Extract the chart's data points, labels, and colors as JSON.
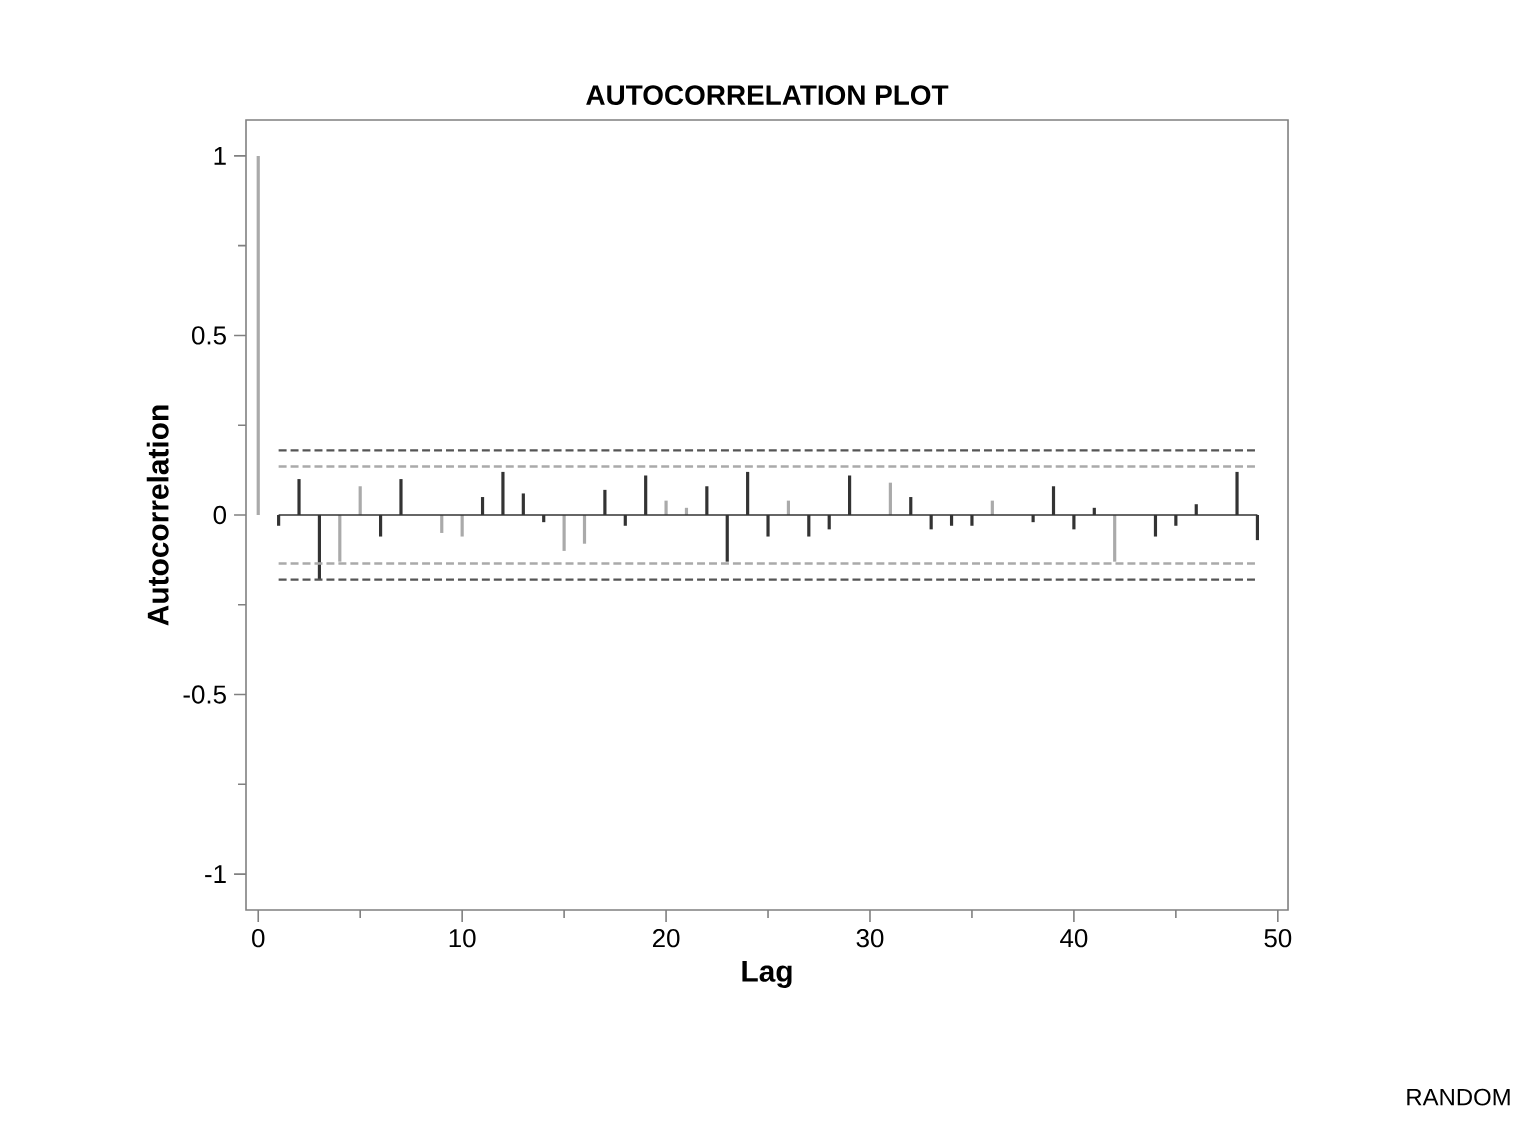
{
  "chart_data": {
    "type": "bar",
    "title": "AUTOCORRELATION PLOT",
    "xlabel": "Lag",
    "ylabel": "Autocorrelation",
    "x": [
      0,
      1,
      2,
      3,
      4,
      5,
      6,
      7,
      8,
      9,
      10,
      11,
      12,
      13,
      14,
      15,
      16,
      17,
      18,
      19,
      20,
      21,
      22,
      23,
      24,
      25,
      26,
      27,
      28,
      29,
      30,
      31,
      32,
      33,
      34,
      35,
      36,
      37,
      38,
      39,
      40,
      41,
      42,
      43,
      44,
      45,
      46,
      47,
      48,
      49
    ],
    "values": [
      1,
      -0.03,
      0.1,
      -0.18,
      -0.13,
      0.08,
      -0.06,
      0.1,
      0,
      -0.05,
      -0.06,
      0.05,
      0.12,
      0.06,
      -0.02,
      -0.1,
      -0.08,
      0.07,
      -0.03,
      0.11,
      0.04,
      0.02,
      0.08,
      -0.13,
      0.12,
      -0.06,
      0.04,
      -0.06,
      -0.04,
      0.11,
      0,
      0.09,
      0.05,
      -0.04,
      -0.03,
      -0.03,
      0.04,
      0,
      -0.02,
      0.08,
      -0.04,
      0.02,
      -0.13,
      0,
      -0.06,
      -0.03,
      0.03,
      0,
      0.12,
      -0.07
    ],
    "colors": [
      "#aaaaaa",
      "#333333",
      "#333333",
      "#333333",
      "#aaaaaa",
      "#aaaaaa",
      "#333333",
      "#333333",
      "#333333",
      "#aaaaaa",
      "#aaaaaa",
      "#333333",
      "#333333",
      "#333333",
      "#333333",
      "#aaaaaa",
      "#aaaaaa",
      "#333333",
      "#333333",
      "#333333",
      "#aaaaaa",
      "#aaaaaa",
      "#333333",
      "#333333",
      "#333333",
      "#333333",
      "#aaaaaa",
      "#333333",
      "#333333",
      "#333333",
      "#333333",
      "#aaaaaa",
      "#333333",
      "#333333",
      "#333333",
      "#333333",
      "#aaaaaa",
      "#333333",
      "#333333",
      "#333333",
      "#333333",
      "#333333",
      "#aaaaaa",
      "#333333",
      "#333333",
      "#333333",
      "#333333",
      "#333333",
      "#333333",
      "#333333"
    ],
    "xlim": [
      -0.6,
      50.5
    ],
    "ylim": [
      -1.1,
      1.1
    ],
    "xticks": [
      0,
      10,
      20,
      30,
      40,
      50
    ],
    "yticks": [
      -1,
      -0.5,
      0,
      0.5,
      1
    ],
    "ref_lines": [
      {
        "axis": "y",
        "value": 0.18,
        "color": "#555555",
        "line_style": "dashed"
      },
      {
        "axis": "y",
        "value": 0.135,
        "color": "#aaaaaa",
        "line_style": "dashed"
      },
      {
        "axis": "y",
        "value": -0.135,
        "color": "#aaaaaa",
        "line_style": "dashed"
      },
      {
        "axis": "y",
        "value": -0.18,
        "color": "#555555",
        "line_style": "dashed"
      },
      {
        "axis": "y",
        "value": 0,
        "color": "#333333",
        "line_style": "solid"
      }
    ],
    "annotations": [
      "RANDOM"
    ]
  }
}
